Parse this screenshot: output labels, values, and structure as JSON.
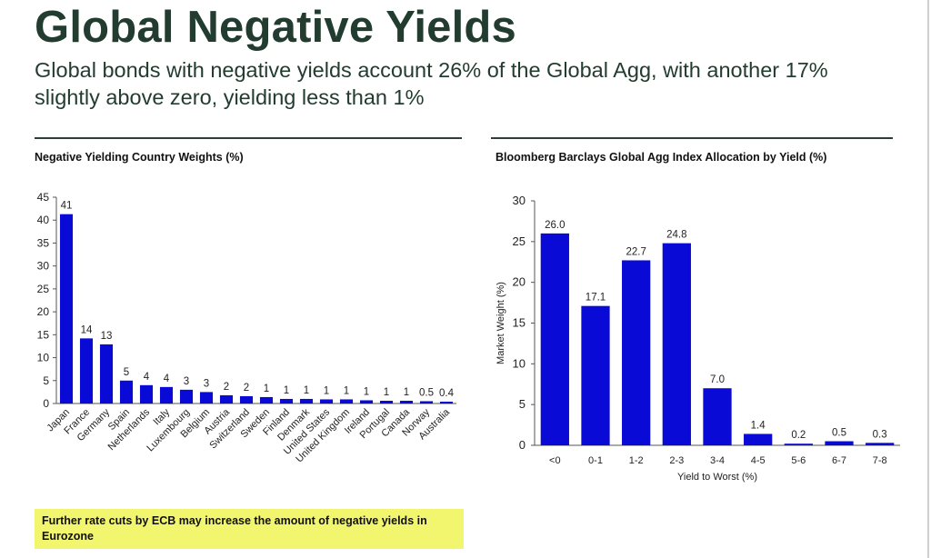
{
  "title": "Global Negative Yields",
  "subtitle": "Global bonds with negative yields account 26% of the Global Agg, with another 17% slightly above zero, yielding less than 1%",
  "note": "Further rate cuts by ECB may increase the amount of negative yields in Eurozone",
  "colors": {
    "bar": "#0a0ad6",
    "heading": "#233c30"
  },
  "chart_data": [
    {
      "type": "bar",
      "title": "Negative Yielding Country Weights (%)",
      "xlabel": "",
      "ylabel": "",
      "categories": [
        "Japan",
        "France",
        "Germany",
        "Spain",
        "Netherlands",
        "Italy",
        "Luxembourg",
        "Belgium",
        "Austria",
        "Switzerland",
        "Sweden",
        "Finland",
        "Denmark",
        "United States",
        "United Kingdom",
        "Ireland",
        "Portugal",
        "Canada",
        "Norway",
        "Australia"
      ],
      "values": [
        41.3,
        14.2,
        12.9,
        5.0,
        4.0,
        3.6,
        3.0,
        2.5,
        1.8,
        1.6,
        1.4,
        1.0,
        1.0,
        0.9,
        0.9,
        0.7,
        0.6,
        0.6,
        0.5,
        0.4
      ],
      "data_labels": [
        "41",
        "14",
        "13",
        "5",
        "4",
        "4",
        "3",
        "3",
        "2",
        "2",
        "1",
        "1",
        "1",
        "1",
        "1",
        "1",
        "1",
        "1",
        "0.5",
        "0.4"
      ],
      "ylim": [
        0,
        45
      ],
      "yticks": [
        0,
        5,
        10,
        15,
        20,
        25,
        30,
        35,
        40,
        45
      ],
      "grid": false
    },
    {
      "type": "bar",
      "title": "Bloomberg Barclays Global Agg Index Allocation by Yield (%)",
      "xlabel": "Yield to Worst (%)",
      "ylabel": "Market Weight (%)",
      "categories": [
        "<0",
        "0-1",
        "1-2",
        "2-3",
        "3-4",
        "4-5",
        "5-6",
        "6-7",
        "7-8"
      ],
      "values": [
        26.0,
        17.1,
        22.7,
        24.8,
        7.0,
        1.4,
        0.2,
        0.5,
        0.3
      ],
      "data_labels": [
        "26.0",
        "17.1",
        "22.7",
        "24.8",
        "7.0",
        "1.4",
        "0.2",
        "0.5",
        "0.3"
      ],
      "ylim": [
        0,
        30
      ],
      "yticks": [
        0,
        5,
        10,
        15,
        20,
        25,
        30
      ],
      "grid": false
    }
  ]
}
